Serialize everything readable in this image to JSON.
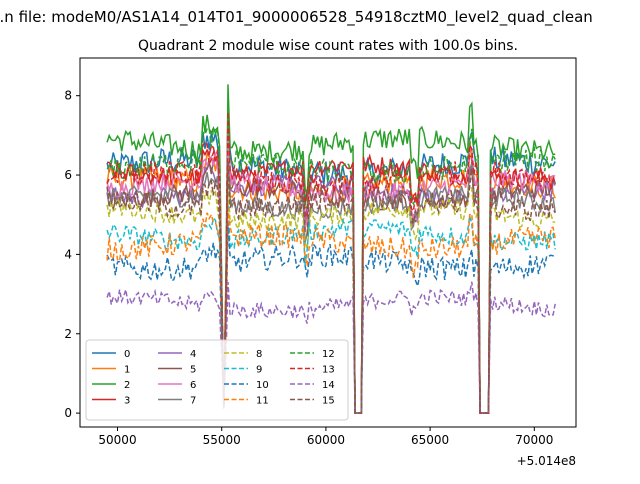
{
  "suptitle": "...n file: modeM0/AS1A14_014T01_9000006528_54918cztM0_level2_quad_clean",
  "chart_data": {
    "type": "line",
    "title": "Quadrant 2 module wise count rates with 100.0s bins.",
    "xlabel": "",
    "ylabel": "",
    "x_offset_label": "+5.014e8",
    "xlim": [
      48200,
      72000
    ],
    "ylim": [
      -0.35,
      8.95
    ],
    "xticks": [
      50000,
      55000,
      60000,
      65000,
      70000
    ],
    "xtick_labels": [
      "50000",
      "55000",
      "60000",
      "65000",
      "70000"
    ],
    "yticks": [
      0,
      2,
      4,
      6,
      8
    ],
    "ytick_labels": [
      "0",
      "2",
      "4",
      "6",
      "8"
    ],
    "x_range": [
      49500,
      71000
    ],
    "gaps": [
      [
        54950,
        55250
      ],
      [
        61450,
        61750
      ],
      [
        67400,
        67800
      ]
    ],
    "zero_intervals": [
      [
        61350,
        61750
      ],
      [
        67400,
        67800
      ]
    ],
    "legend_ncol": 4,
    "legend_position": "lower-left",
    "series": [
      {
        "name": "0",
        "color": "#1f77b4",
        "dashed": false,
        "level": 6.2,
        "noise": 0.35
      },
      {
        "name": "1",
        "color": "#ff7f0e",
        "dashed": false,
        "level": 5.75,
        "noise": 0.3
      },
      {
        "name": "2",
        "color": "#2ca02c",
        "dashed": false,
        "level": 6.75,
        "noise": 0.3
      },
      {
        "name": "3",
        "color": "#d62728",
        "dashed": false,
        "level": 6.1,
        "noise": 0.25
      },
      {
        "name": "4",
        "color": "#9467bd",
        "dashed": false,
        "level": 5.6,
        "noise": 0.25
      },
      {
        "name": "5",
        "color": "#8c564b",
        "dashed": false,
        "level": 5.5,
        "noise": 0.25
      },
      {
        "name": "6",
        "color": "#e377c2",
        "dashed": false,
        "level": 5.7,
        "noise": 0.25
      },
      {
        "name": "7",
        "color": "#7f7f7f",
        "dashed": false,
        "level": 5.3,
        "noise": 0.25
      },
      {
        "name": "8",
        "color": "#bcbd22",
        "dashed": true,
        "level": 5.0,
        "noise": 0.25
      },
      {
        "name": "9",
        "color": "#17becf",
        "dashed": true,
        "level": 4.5,
        "noise": 0.25
      },
      {
        "name": "10",
        "color": "#1f77b4",
        "dashed": true,
        "level": 3.8,
        "noise": 0.3
      },
      {
        "name": "11",
        "color": "#ff7f0e",
        "dashed": true,
        "level": 4.3,
        "noise": 0.3
      },
      {
        "name": "12",
        "color": "#2ca02c",
        "dashed": true,
        "level": 6.2,
        "noise": 0.3
      },
      {
        "name": "13",
        "color": "#d62728",
        "dashed": true,
        "level": 5.9,
        "noise": 0.3
      },
      {
        "name": "14",
        "color": "#9467bd",
        "dashed": true,
        "level": 2.75,
        "noise": 0.2
      },
      {
        "name": "15",
        "color": "#8c564b",
        "dashed": true,
        "level": 5.3,
        "noise": 0.3
      }
    ]
  }
}
